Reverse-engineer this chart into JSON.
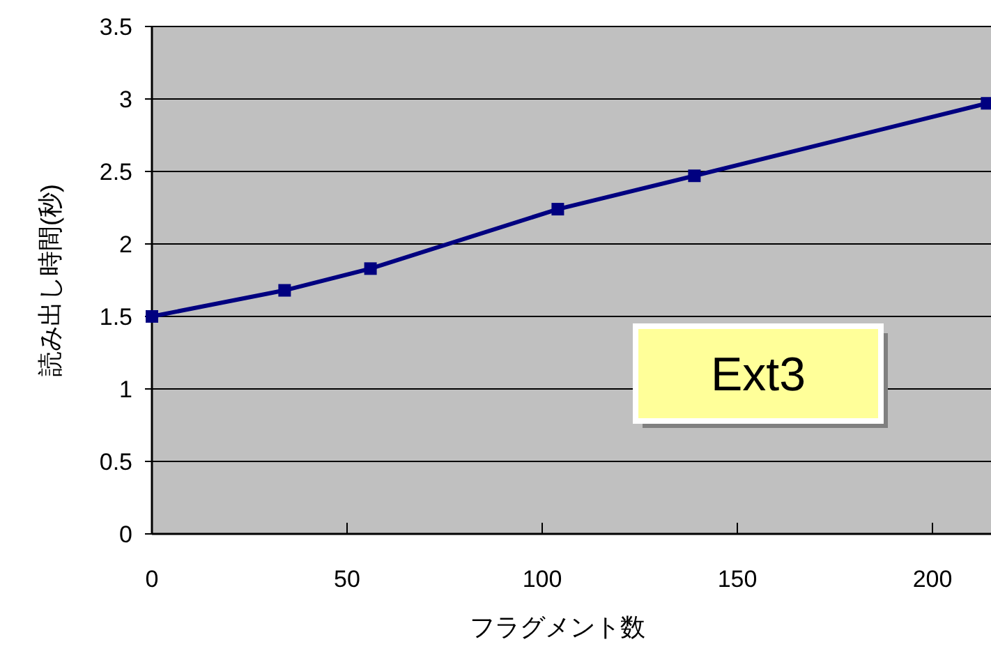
{
  "chart_data": {
    "type": "line",
    "xlabel": "フラグメント数",
    "ylabel": "読み出し時間(秒)",
    "x": [
      0,
      34,
      56,
      104,
      139,
      214
    ],
    "series": [
      {
        "color": "#000080",
        "values": [
          1.5,
          1.68,
          1.83,
          2.24,
          2.47,
          2.97
        ]
      }
    ],
    "xlim": [
      0,
      215
    ],
    "xticks": [
      0,
      50,
      100,
      150,
      200
    ],
    "ylim": [
      0,
      3.5
    ],
    "yticks": [
      0,
      0.5,
      1,
      1.5,
      2,
      2.5,
      3,
      3.5
    ],
    "grid": "y",
    "marker": "square",
    "line_style": "solid",
    "annotations": [
      "Ext3"
    ]
  }
}
